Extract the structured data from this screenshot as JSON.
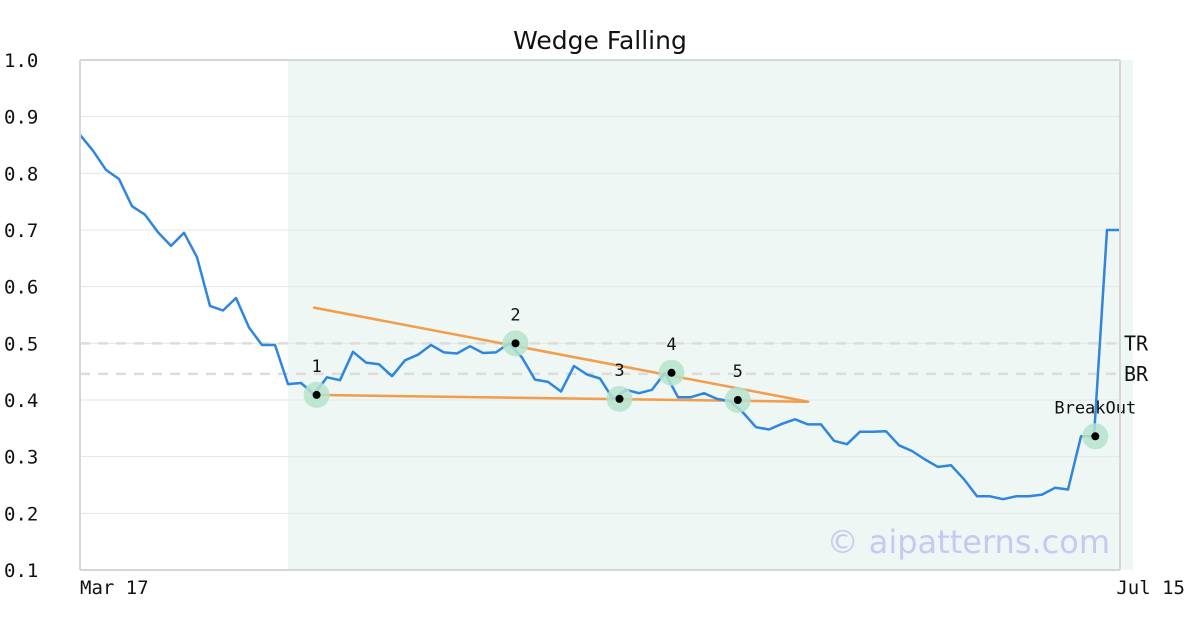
{
  "chart_data": {
    "type": "line",
    "title": "Wedge Falling",
    "xlabel": "",
    "ylabel": "",
    "ylim": [
      0.1,
      1.0
    ],
    "y_ticks": [
      "0.1",
      "0.2",
      "0.3",
      "0.4",
      "0.5",
      "0.6",
      "0.7",
      "0.8",
      "0.9",
      "1.0"
    ],
    "x_ticks": [
      {
        "label": "Mar 17",
        "index": 0
      },
      {
        "label": "Jul 15",
        "index": 85
      }
    ],
    "grid": true,
    "series": [
      {
        "color": "#2e86de",
        "values": [
          0.868,
          0.84,
          0.806,
          0.79,
          0.742,
          0.727,
          0.696,
          0.672,
          0.695,
          0.652,
          0.566,
          0.558,
          0.58,
          0.528,
          0.497,
          0.497,
          0.428,
          0.43,
          0.41,
          0.44,
          0.435,
          0.485,
          0.466,
          0.463,
          0.442,
          0.47,
          0.48,
          0.497,
          0.484,
          0.482,
          0.495,
          0.483,
          0.484,
          0.5,
          0.475,
          0.436,
          0.432,
          0.415,
          0.46,
          0.445,
          0.438,
          0.402,
          0.418,
          0.412,
          0.418,
          0.448,
          0.405,
          0.405,
          0.412,
          0.402,
          0.398,
          0.378,
          0.352,
          0.348,
          0.358,
          0.366,
          0.357,
          0.357,
          0.328,
          0.322,
          0.344,
          0.344,
          0.345,
          0.32,
          0.31,
          0.295,
          0.282,
          0.285,
          0.26,
          0.23,
          0.23,
          0.225,
          0.23,
          0.23,
          0.233,
          0.245,
          0.242,
          0.336,
          0.336,
          0.7,
          0.7
        ]
      }
    ],
    "shaded_region": {
      "from_index": 16,
      "to_index": 81,
      "color": "#eef7f3"
    },
    "trendlines": [
      {
        "color": "#f39c4a",
        "from": {
          "index": 18,
          "value": 0.563
        },
        "to": {
          "index": 56,
          "value": 0.397
        }
      },
      {
        "color": "#f39c4a",
        "from": {
          "index": 18,
          "value": 0.409
        },
        "to": {
          "index": 56,
          "value": 0.397
        }
      }
    ],
    "pattern_points": [
      {
        "label": "1",
        "index": 18.2,
        "value": 0.409
      },
      {
        "label": "2",
        "index": 33.5,
        "value": 0.5
      },
      {
        "label": "3",
        "index": 41.5,
        "value": 0.402
      },
      {
        "label": "4",
        "index": 45.5,
        "value": 0.448
      },
      {
        "label": "5",
        "index": 50.6,
        "value": 0.4
      },
      {
        "label": "BreakOut",
        "index": 78.1,
        "value": 0.336
      }
    ],
    "reference_lines": [
      {
        "label": "TR",
        "value": 0.5
      },
      {
        "label": "BR",
        "value": 0.446
      }
    ]
  },
  "watermark": "© aipatterns.com"
}
